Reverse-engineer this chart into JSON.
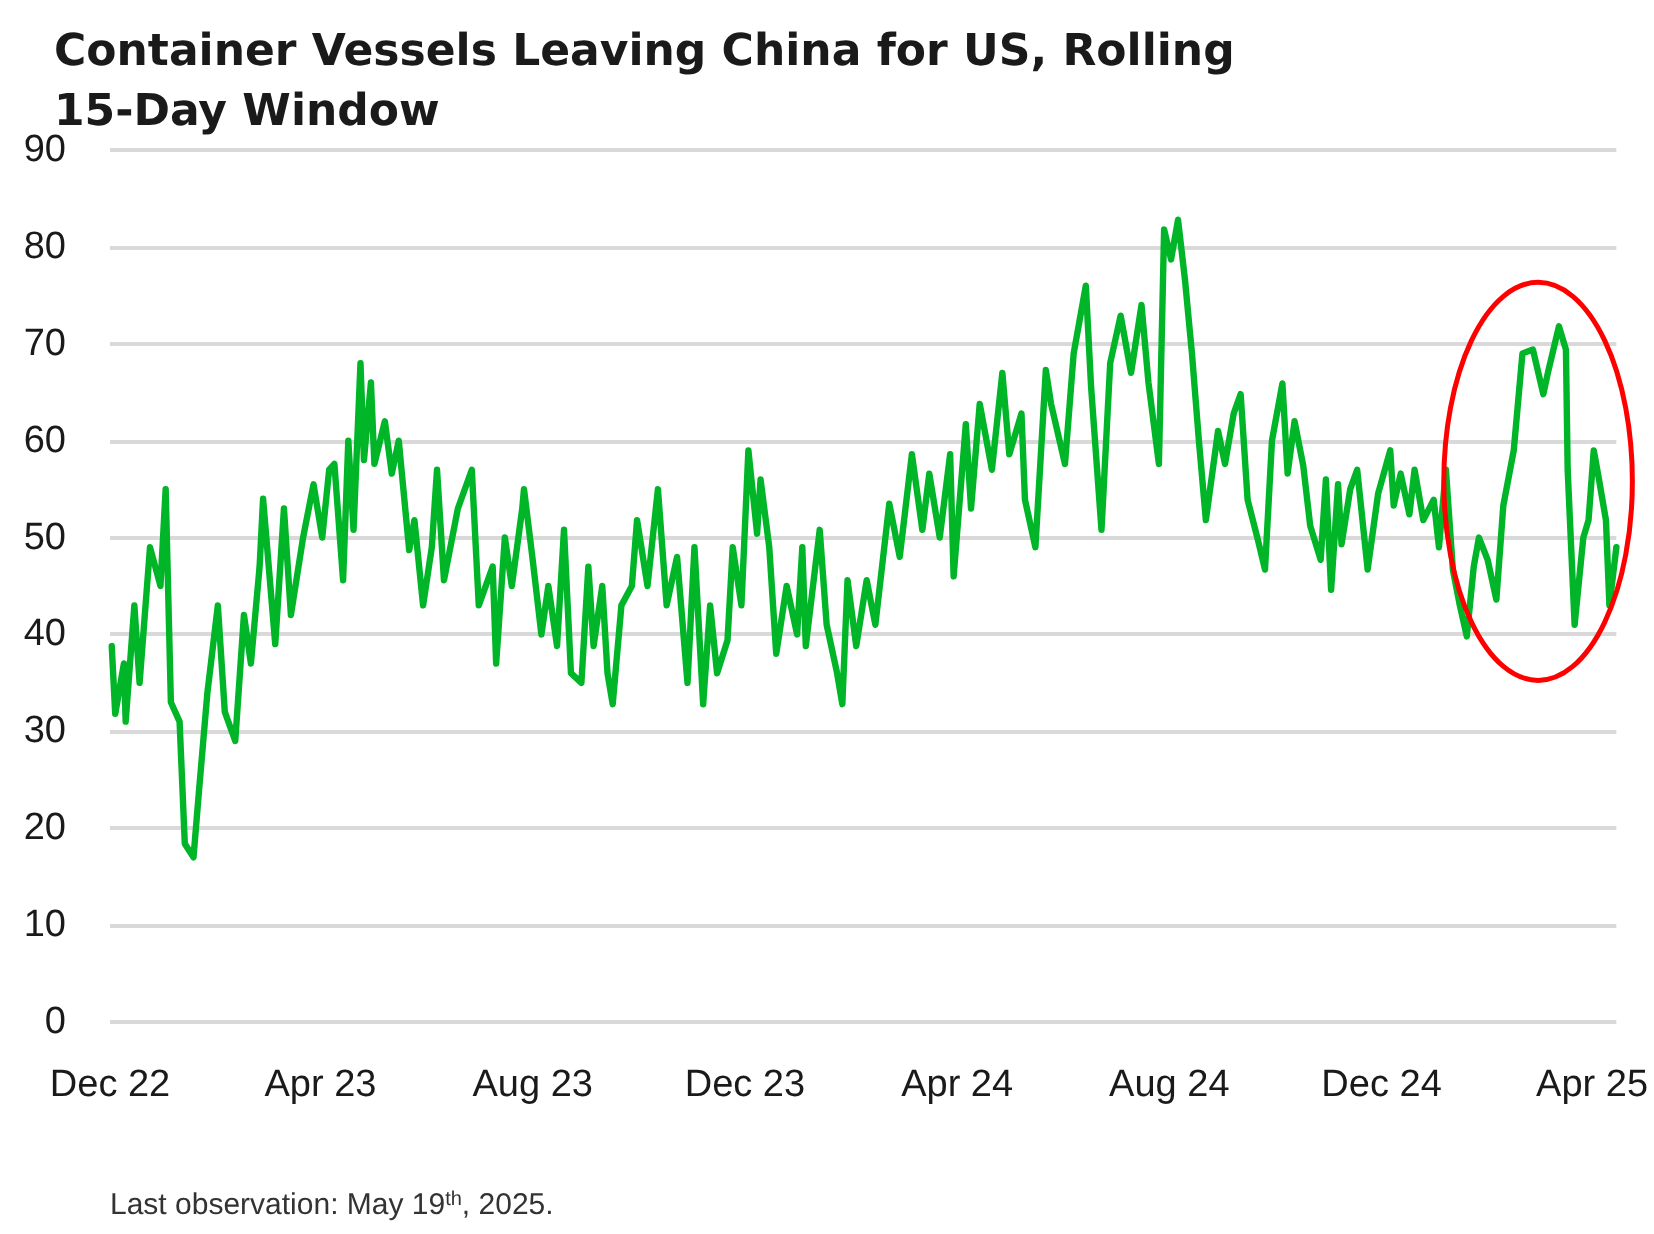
{
  "chart_data": {
    "type": "line",
    "title": "Container Vessels Leaving China for US, Rolling 15-Day Window",
    "annotations": [
      "Last observation: May 19$^{th}$, 2025."
    ],
    "xlim": [
      "2022-12-01",
      "2025-04-15"
    ],
    "xticks": [
      {
        "value": "2022-12-01",
        "label": "Dec 22"
      },
      {
        "value": "2023-04-01",
        "label": "Apr 23"
      },
      {
        "value": "2023-08-01",
        "label": "Aug 23"
      },
      {
        "value": "2023-12-01",
        "label": "Dec 23"
      },
      {
        "value": "2024-04-01",
        "label": "Apr 24"
      },
      {
        "value": "2024-08-01",
        "label": "Aug 24"
      },
      {
        "value": "2024-12-01",
        "label": "Dec 24"
      },
      {
        "value": "2025-04-01",
        "label": "Apr 25"
      }
    ],
    "ylim": [
      0,
      90
    ],
    "yticks": [
      0,
      10,
      20,
      30,
      40,
      50,
      60,
      70,
      80,
      90
    ],
    "grid": "y",
    "marker": "none",
    "line_style": "solid",
    "series": [
      {
        "color": "#00b527",
        "x": [
          "2022-12-02",
          "2022-12-04",
          "2022-12-09",
          "2022-12-10",
          "2022-12-15",
          "2022-12-18",
          "2022-12-24",
          "2022-12-30",
          "2023-01-02",
          "2023-01-05",
          "2023-01-10",
          "2023-01-13",
          "2023-01-18",
          "2023-01-21",
          "2023-01-26",
          "2023-02-01",
          "2023-02-05",
          "2023-02-11",
          "2023-02-16",
          "2023-02-20",
          "2023-02-25",
          "2023-02-27",
          "2023-03-06",
          "2023-03-11",
          "2023-03-15",
          "2023-03-22",
          "2023-03-28",
          "2023-04-02",
          "2023-04-06",
          "2023-04-09",
          "2023-04-14",
          "2023-04-17",
          "2023-04-20",
          "2023-04-24",
          "2023-04-26",
          "2023-04-30",
          "2023-05-02",
          "2023-05-08",
          "2023-05-12",
          "2023-05-16",
          "2023-05-22",
          "2023-05-25",
          "2023-05-30",
          "2023-06-04",
          "2023-06-07",
          "2023-06-11",
          "2023-06-19",
          "2023-06-27",
          "2023-07-01",
          "2023-07-09",
          "2023-07-11",
          "2023-07-16",
          "2023-07-20",
          "2023-07-26",
          "2023-07-27",
          "2023-08-01",
          "2023-08-06",
          "2023-08-10",
          "2023-08-15",
          "2023-08-19",
          "2023-08-23",
          "2023-08-29",
          "2023-09-02",
          "2023-09-05",
          "2023-09-10",
          "2023-09-13",
          "2023-09-16",
          "2023-09-21",
          "2023-09-27",
          "2023-09-30",
          "2023-10-06",
          "2023-10-12",
          "2023-10-17",
          "2023-10-23",
          "2023-10-29",
          "2023-11-02",
          "2023-11-07",
          "2023-11-11",
          "2023-11-15",
          "2023-11-21",
          "2023-11-24",
          "2023-11-29",
          "2023-12-03",
          "2023-12-08",
          "2023-12-10",
          "2023-12-15",
          "2023-12-19",
          "2023-12-25",
          "2023-12-31",
          "2024-01-03",
          "2024-01-05",
          "2024-01-13",
          "2024-01-17",
          "2024-01-23",
          "2024-01-26",
          "2024-01-29",
          "2024-02-03",
          "2024-02-09",
          "2024-02-14",
          "2024-02-22",
          "2024-02-28",
          "2024-03-06",
          "2024-03-12",
          "2024-03-16",
          "2024-03-22",
          "2024-03-28",
          "2024-03-30",
          "2024-04-06",
          "2024-04-09",
          "2024-04-14",
          "2024-04-21",
          "2024-04-27",
          "2024-05-01",
          "2024-05-08",
          "2024-05-10",
          "2024-05-16",
          "2024-05-22",
          "2024-05-25",
          "2024-06-02",
          "2024-06-07",
          "2024-06-14",
          "2024-06-17",
          "2024-06-23",
          "2024-06-28",
          "2024-07-04",
          "2024-07-10",
          "2024-07-16",
          "2024-07-20",
          "2024-07-26",
          "2024-07-29",
          "2024-08-02",
          "2024-08-06",
          "2024-08-10",
          "2024-08-14",
          "2024-08-18",
          "2024-08-22",
          "2024-08-29",
          "2024-09-02",
          "2024-09-07",
          "2024-09-11",
          "2024-09-15",
          "2024-09-21",
          "2024-09-25",
          "2024-09-29",
          "2024-10-05",
          "2024-10-08",
          "2024-10-12",
          "2024-10-17",
          "2024-10-21",
          "2024-10-27",
          "2024-10-30",
          "2024-11-02",
          "2024-11-06",
          "2024-11-08",
          "2024-11-13",
          "2024-11-17",
          "2024-11-23",
          "2024-11-29",
          "2024-12-06",
          "2024-12-08",
          "2024-12-12",
          "2024-12-17",
          "2024-12-20",
          "2024-12-25",
          "2024-12-31",
          "2025-01-03",
          "2025-01-07",
          "2025-01-11",
          "2025-01-15",
          "2025-01-19",
          "2025-01-23",
          "2025-01-26",
          "2025-01-31",
          "2025-02-05",
          "2025-02-09",
          "2025-02-15",
          "2025-02-20",
          "2025-02-26",
          "2025-03-04",
          "2025-03-07",
          "2025-03-13",
          "2025-03-17",
          "2025-03-18",
          "2025-03-22",
          "2025-03-27",
          "2025-03-30",
          "2025-04-02",
          "2025-04-05",
          "2025-04-09",
          "2025-04-11",
          "2025-04-15"
        ],
        "values": [
          38.8,
          31.8,
          37,
          31,
          43,
          35,
          49,
          45,
          55,
          33,
          31,
          18.4,
          17,
          23.5,
          34,
          43,
          32,
          29,
          42,
          37,
          47,
          54,
          39,
          53,
          42,
          50,
          55.5,
          50,
          57,
          57.6,
          45.6,
          60,
          50.8,
          68,
          58,
          66,
          57.6,
          62,
          56.6,
          60,
          48.7,
          51.8,
          43,
          49,
          57,
          45.6,
          53,
          57,
          43,
          47,
          37,
          50,
          45,
          53,
          55,
          47.7,
          40,
          45,
          38.8,
          50.8,
          36,
          35,
          47,
          38.8,
          45,
          36,
          32.8,
          43,
          45,
          51.8,
          45,
          55,
          43,
          48,
          35,
          49,
          32.8,
          43,
          36,
          39.4,
          49,
          43,
          59,
          50.4,
          56,
          49,
          38,
          45,
          40,
          49,
          38.8,
          50.8,
          41,
          36,
          32.8,
          45.6,
          38.8,
          45.6,
          41,
          53.5,
          48,
          58.6,
          50.8,
          56.6,
          50,
          58.6,
          46,
          61.7,
          53,
          63.8,
          57,
          67,
          58.6,
          62.8,
          53.9,
          49,
          67.3,
          63.8,
          57.6,
          69,
          76,
          65.6,
          50.8,
          68,
          72.9,
          67,
          74,
          66,
          57.6,
          81.8,
          78.7,
          82.8,
          76.6,
          69,
          60,
          51.8,
          61,
          57.6,
          62.8,
          64.8,
          53.9,
          49.7,
          46.7,
          60,
          65.9,
          56.6,
          62,
          57.4,
          51.2,
          47.7,
          56,
          44.6,
          55.5,
          49.3,
          55,
          57,
          46.7,
          54.5,
          59,
          53.3,
          56.6,
          52.4,
          57,
          51.8,
          53.9,
          49,
          57,
          46.7,
          43,
          39.8,
          47,
          50,
          47.7,
          43.6,
          53.3,
          59,
          69,
          69.4,
          64.8,
          67.3,
          71.8,
          69.4,
          57,
          41,
          50,
          51.8,
          59,
          56,
          51.8,
          43,
          49
        ]
      }
    ]
  }
}
